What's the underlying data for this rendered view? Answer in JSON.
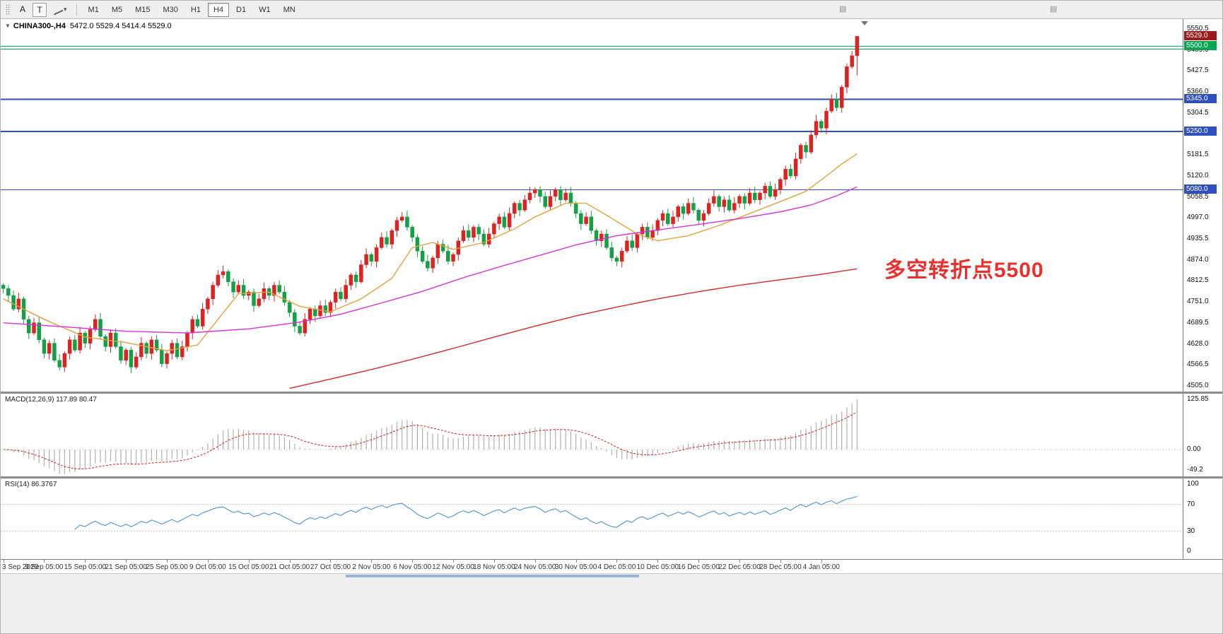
{
  "colors": {
    "candle_up": "#dd2222",
    "candle_down": "#13a046",
    "ma_fast": "#e6a23c",
    "ma_mid": "#d633d6",
    "ma_slow": "#d62b2b",
    "macd_hist": "#b0b0b0",
    "macd_signal": "#d02020",
    "rsi_line": "#4f93d2",
    "annotation": "#e8312f"
  },
  "toolbar": {
    "buttons": [
      {
        "label": "A"
      },
      {
        "label": "T"
      }
    ],
    "timeframes": [
      {
        "label": "M1",
        "active": false
      },
      {
        "label": "M5",
        "active": false
      },
      {
        "label": "M15",
        "active": false
      },
      {
        "label": "M30",
        "active": false
      },
      {
        "label": "H1",
        "active": false
      },
      {
        "label": "H4",
        "active": true
      },
      {
        "label": "D1",
        "active": false
      },
      {
        "label": "W1",
        "active": false
      },
      {
        "label": "MN",
        "active": false
      }
    ]
  },
  "chart": {
    "title": "CHINA300-,H4",
    "ohlc": "5472.0 5529.4 5414.4 5529.0",
    "annotation": "多空转折点5500",
    "price_markers": [
      {
        "label": "5529.0",
        "price": 5529.0,
        "bg": "#9b1b1b",
        "type": "current-price"
      },
      {
        "label": "5500.0",
        "price": 5500.0,
        "bg": "#00a651",
        "type": "green-level"
      },
      {
        "label": "5345.0",
        "price": 5345.0,
        "bg": "#2d4fc0",
        "type": "blue-level"
      },
      {
        "label": "5250.0",
        "price": 5250.0,
        "bg": "#2d4fc0",
        "type": "blue-level"
      },
      {
        "label": "5080.0",
        "price": 5080.0,
        "bg": "#2d4fc0",
        "type": "blue-level"
      }
    ]
  },
  "macd_panel": {
    "label": "MACD(12,26,9) 117.89 80.47"
  },
  "rsi_panel": {
    "label": "RSI(14) 86.3767"
  },
  "chart_data": {
    "type": "candlestick",
    "symbol": "CHINA300-",
    "period": "H4",
    "last_ohlc": {
      "open": 5472.0,
      "high": 5529.4,
      "low": 5414.4,
      "close": 5529.0
    },
    "first_open": 4800,
    "ylim": [
      4505.0,
      5550.5
    ],
    "y_ticks": [
      "5550.5",
      "5489.0",
      "5427.5",
      "5366.0",
      "5304.5",
      "5243.0",
      "5181.5",
      "5120.0",
      "5058.5",
      "4997.0",
      "4935.5",
      "4874.0",
      "4812.5",
      "4751.0",
      "4689.5",
      "4628.0",
      "4566.5",
      "4505.0"
    ],
    "x_labels": [
      "3 Sep 2020",
      "9 Sep 05:00",
      "15 Sep 05:00",
      "21 Sep 05:00",
      "25 Sep 05:00",
      "9 Oct 05:00",
      "15 Oct 05:00",
      "21 Oct 05:00",
      "27 Oct 05:00",
      "2 Nov 05:00",
      "6 Nov 05:00",
      "12 Nov 05:00",
      "18 Nov 05:00",
      "24 Nov 05:00",
      "30 Nov 05:00",
      "4 Dec 05:00",
      "10 Dec 05:00",
      "16 Dec 05:00",
      "22 Dec 05:00",
      "28 Dec 05:00",
      "4 Jan 05:00"
    ],
    "closes": [
      4790,
      4770,
      4730,
      4760,
      4700,
      4660,
      4690,
      4640,
      4600,
      4630,
      4580,
      4560,
      4600,
      4640,
      4610,
      4660,
      4630,
      4670,
      4700,
      4650,
      4620,
      4660,
      4620,
      4580,
      4610,
      4560,
      4590,
      4630,
      4600,
      4640,
      4610,
      4570,
      4600,
      4630,
      4590,
      4620,
      4660,
      4700,
      4680,
      4730,
      4760,
      4800,
      4830,
      4840,
      4810,
      4780,
      4800,
      4770,
      4780,
      4740,
      4760,
      4790,
      4770,
      4800,
      4780,
      4750,
      4720,
      4680,
      4660,
      4700,
      4730,
      4710,
      4740,
      4720,
      4750,
      4780,
      4760,
      4800,
      4830,
      4810,
      4860,
      4890,
      4870,
      4910,
      4940,
      4920,
      4960,
      4990,
      5000,
      4970,
      4940,
      4900,
      4870,
      4850,
      4880,
      4920,
      4900,
      4870,
      4890,
      4930,
      4960,
      4940,
      4970,
      4950,
      4920,
      4950,
      4980,
      5000,
      4970,
      5010,
      5040,
      5020,
      5050,
      5070,
      5080,
      5060,
      5030,
      5060,
      5080,
      5050,
      5070,
      5040,
      5010,
      4980,
      5000,
      4960,
      4930,
      4950,
      4910,
      4880,
      4870,
      4900,
      4930,
      4910,
      4950,
      4970,
      4940,
      4960,
      4990,
      5010,
      4980,
      5000,
      5030,
      5010,
      5040,
      5020,
      4990,
      5010,
      5040,
      5060,
      5030,
      5050,
      5020,
      5040,
      5060,
      5040,
      5070,
      5050,
      5070,
      5090,
      5060,
      5080,
      5110,
      5140,
      5120,
      5170,
      5210,
      5190,
      5240,
      5280,
      5260,
      5310,
      5345,
      5320,
      5380,
      5440,
      5472,
      5529
    ],
    "horizontal_levels": [
      {
        "price": 5500,
        "color": "#00b050",
        "width": 1
      },
      {
        "price": 5492,
        "color": "#00b050",
        "width": 1
      },
      {
        "price": 5345,
        "color": "#2d4fc0",
        "width": 2
      },
      {
        "price": 5250,
        "color": "#2d4fc0",
        "width": 2
      },
      {
        "price": 5080,
        "color": "#2d4fc0",
        "width": 1
      }
    ],
    "ma_fast_points": [
      [
        0,
        4760
      ],
      [
        8,
        4700
      ],
      [
        16,
        4648
      ],
      [
        24,
        4632
      ],
      [
        32,
        4608
      ],
      [
        38,
        4625
      ],
      [
        42,
        4700
      ],
      [
        46,
        4775
      ],
      [
        52,
        4780
      ],
      [
        58,
        4738
      ],
      [
        64,
        4722
      ],
      [
        70,
        4760
      ],
      [
        76,
        4820
      ],
      [
        80,
        4910
      ],
      [
        84,
        4925
      ],
      [
        88,
        4905
      ],
      [
        94,
        4925
      ],
      [
        100,
        4965
      ],
      [
        104,
        5000
      ],
      [
        110,
        5040
      ],
      [
        114,
        5040
      ],
      [
        118,
        5005
      ],
      [
        124,
        4950
      ],
      [
        128,
        4930
      ],
      [
        134,
        4945
      ],
      [
        140,
        4975
      ],
      [
        146,
        5010
      ],
      [
        152,
        5045
      ],
      [
        157,
        5075
      ],
      [
        161,
        5120
      ],
      [
        164,
        5155
      ],
      [
        167,
        5185
      ]
    ],
    "ma_mid_points": [
      [
        0,
        4690
      ],
      [
        12,
        4678
      ],
      [
        24,
        4665
      ],
      [
        36,
        4660
      ],
      [
        48,
        4672
      ],
      [
        58,
        4692
      ],
      [
        66,
        4715
      ],
      [
        74,
        4748
      ],
      [
        82,
        4782
      ],
      [
        90,
        4822
      ],
      [
        98,
        4858
      ],
      [
        106,
        4892
      ],
      [
        112,
        4918
      ],
      [
        120,
        4945
      ],
      [
        128,
        4962
      ],
      [
        136,
        4978
      ],
      [
        144,
        4995
      ],
      [
        152,
        5015
      ],
      [
        158,
        5035
      ],
      [
        163,
        5062
      ],
      [
        167,
        5088
      ]
    ],
    "ma_slow_points": [
      [
        56,
        4498
      ],
      [
        64,
        4525
      ],
      [
        72,
        4553
      ],
      [
        80,
        4583
      ],
      [
        88,
        4615
      ],
      [
        96,
        4648
      ],
      [
        104,
        4680
      ],
      [
        112,
        4710
      ],
      [
        120,
        4736
      ],
      [
        128,
        4760
      ],
      [
        136,
        4781
      ],
      [
        144,
        4800
      ],
      [
        152,
        4816
      ],
      [
        160,
        4832
      ],
      [
        167,
        4848
      ]
    ],
    "macd": {
      "params": "12,26,9",
      "value": 117.89,
      "signal_value": 80.47,
      "axis_ticks": [
        "125.85",
        "0.00",
        "-49.2"
      ]
    },
    "rsi": {
      "period": 14,
      "value": 86.3767,
      "axis_ticks": [
        "100",
        "70",
        "30",
        "0"
      ],
      "levels": [
        70,
        30
      ]
    }
  }
}
